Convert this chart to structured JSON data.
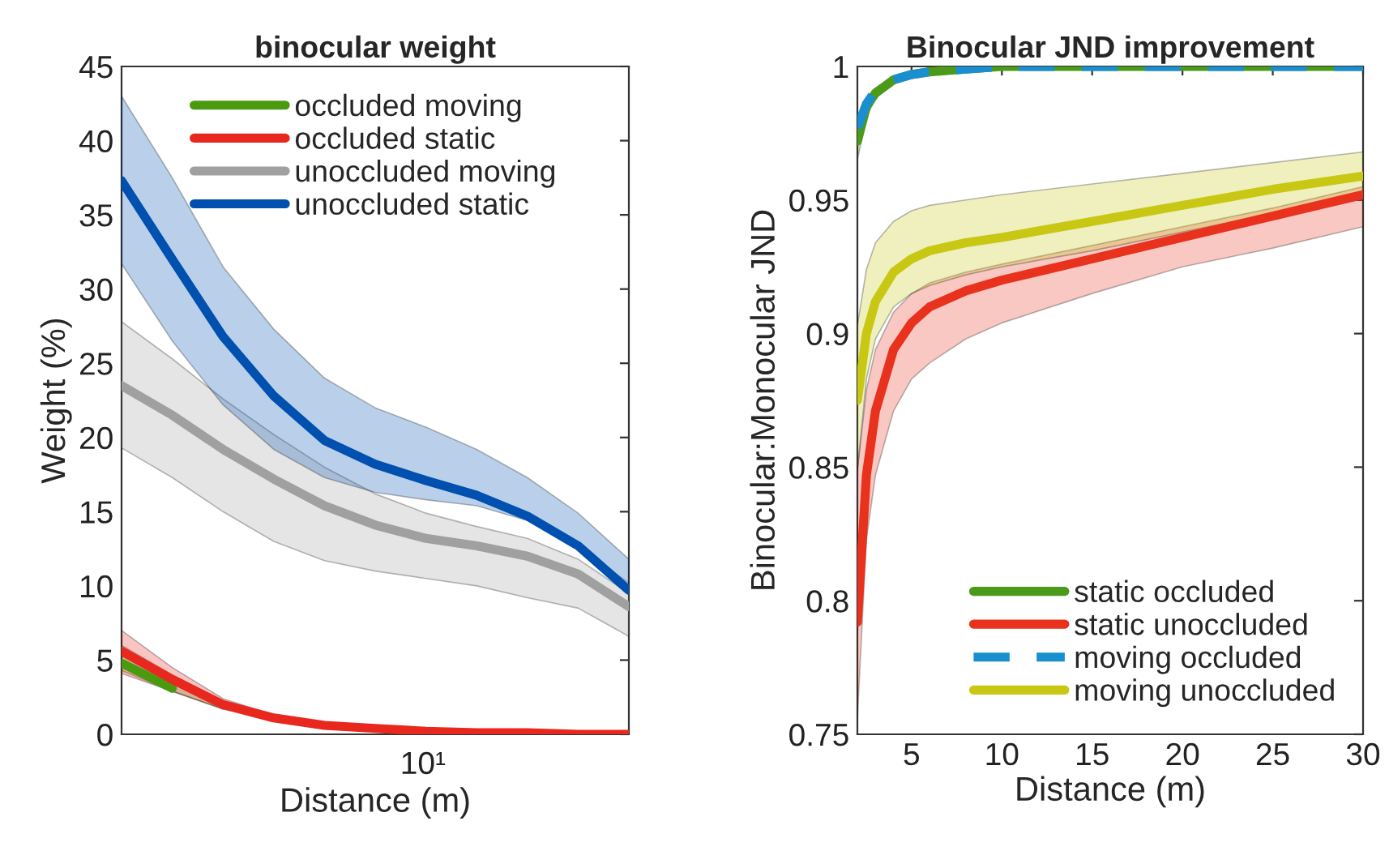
{
  "chart_data": [
    {
      "type": "line",
      "title": "binocular weight",
      "xlabel": "Distance (m)",
      "ylabel": "Weight (%)",
      "ylim": [
        0,
        45
      ],
      "categories": [
        null,
        null,
        null,
        null,
        null,
        null,
        null,
        null,
        null,
        null,
        null
      ],
      "annotations": [
        "10¹"
      ],
      "yticks": [
        0,
        5,
        10,
        15,
        20,
        25,
        30,
        35,
        40,
        45
      ],
      "legend": "top",
      "series": [
        {
          "name": "occluded moving",
          "color": "#4a9a10",
          "values": [
            4.8,
            3.1,
            null,
            null,
            null,
            null,
            null,
            null,
            null,
            null,
            null
          ],
          "lower": [
            4.3,
            2.9,
            1.7,
            null,
            null,
            null,
            null,
            null,
            null,
            null,
            null
          ],
          "upper": [
            6.0,
            4.0,
            2.2,
            null,
            null,
            null,
            null,
            null,
            null,
            null,
            null
          ]
        },
        {
          "name": "occluded static",
          "color": "#e8281e",
          "values": [
            5.6,
            3.7,
            2.0,
            1.1,
            0.6,
            0.4,
            0.2,
            0.1,
            0.1,
            0,
            0
          ],
          "lower": [
            4.1,
            2.9,
            1.7,
            1.0,
            0.6,
            0.4,
            0.2,
            0.1,
            0.1,
            0,
            0
          ],
          "upper": [
            7.0,
            4.5,
            2.4,
            1.3,
            0.7,
            0.4,
            0.2,
            0.1,
            0.1,
            0,
            0
          ]
        },
        {
          "name": "unoccluded moving",
          "color": "#a0a0a0",
          "values": [
            23.5,
            21.5,
            19.2,
            17.2,
            15.4,
            14.1,
            13.2,
            12.7,
            12.0,
            10.8,
            8.6
          ],
          "lower": [
            19.3,
            17.3,
            15.0,
            13.0,
            11.7,
            11.0,
            10.5,
            10.0,
            9.2,
            8.5,
            6.6
          ],
          "upper": [
            27.8,
            25.3,
            22.6,
            20.2,
            18.0,
            16.2,
            14.9,
            14.0,
            13.2,
            11.8,
            9.5
          ]
        },
        {
          "name": "unoccluded static",
          "color": "#0050b0",
          "values": [
            37.3,
            32.0,
            26.8,
            22.8,
            19.8,
            18.2,
            17.1,
            16.1,
            14.7,
            12.7,
            9.7
          ],
          "lower": [
            31.7,
            26.5,
            22.2,
            19.2,
            17.3,
            16.3,
            15.8,
            15.4,
            14.4,
            12.6,
            10.2
          ],
          "upper": [
            43.0,
            37.5,
            31.5,
            27.3,
            24.0,
            22.0,
            20.7,
            19.2,
            17.3,
            14.9,
            11.8
          ]
        }
      ]
    },
    {
      "type": "line",
      "title": "Binocular JND improvement",
      "xlabel": "Distance (m)",
      "ylabel": "Binocular:Monocular JND",
      "xlim": [
        2,
        30
      ],
      "ylim": [
        0.75,
        1
      ],
      "xticks": [
        5,
        10,
        15,
        20,
        25,
        30
      ],
      "yticks": [
        0.75,
        0.8,
        0.85,
        0.9,
        0.95,
        1
      ],
      "legend": "bottom right",
      "series": [
        {
          "name": "static occluded",
          "color": "#4c9a1a",
          "x": [
            2,
            2.5,
            3,
            4,
            5,
            6,
            8,
            10,
            15,
            20,
            25,
            30
          ],
          "values": [
            0.972,
            0.985,
            0.99,
            0.995,
            0.997,
            0.998,
            0.999,
            1.0,
            1.0,
            1.0,
            1.0,
            1.0
          ],
          "lower": [
            0.965,
            0.981,
            0.988,
            0.994,
            0.996,
            0.998,
            0.999,
            1.0,
            1.0,
            1.0,
            1.0,
            1.0
          ],
          "upper": [
            0.978,
            0.988,
            0.992,
            0.996,
            0.998,
            0.999,
            1.0,
            1.0,
            1.0,
            1.0,
            1.0,
            1.0
          ]
        },
        {
          "name": "static unoccluded",
          "color": "#e8321e",
          "x": [
            2,
            2.5,
            3,
            4,
            5,
            6,
            8,
            10,
            15,
            20,
            25,
            30
          ],
          "values": [
            0.792,
            0.847,
            0.871,
            0.894,
            0.904,
            0.91,
            0.916,
            0.92,
            0.928,
            0.936,
            0.944,
            0.952
          ],
          "lower": [
            0.756,
            0.823,
            0.847,
            0.871,
            0.883,
            0.889,
            0.898,
            0.904,
            0.915,
            0.925,
            0.932,
            0.94
          ],
          "upper": [
            0.849,
            0.879,
            0.894,
            0.908,
            0.915,
            0.919,
            0.923,
            0.926,
            0.933,
            0.94,
            0.947,
            0.955
          ]
        },
        {
          "name": "moving occluded",
          "color": "#1a8fd0",
          "line_style": "dashed",
          "x": [
            2,
            2.5,
            3,
            4,
            5,
            6,
            8,
            10,
            15,
            20,
            25,
            30
          ],
          "values": [
            0.977,
            0.986,
            0.991,
            0.995,
            0.997,
            0.998,
            0.999,
            1.0,
            1.0,
            1.0,
            1.0,
            1.0
          ]
        },
        {
          "name": "moving unoccluded",
          "color": "#c8c814",
          "x": [
            2,
            2.5,
            3,
            4,
            5,
            6,
            8,
            10,
            15,
            20,
            25,
            30
          ],
          "values": [
            0.875,
            0.9,
            0.912,
            0.923,
            0.928,
            0.931,
            0.934,
            0.936,
            0.942,
            0.948,
            0.954,
            0.959
          ],
          "lower": [
            0.849,
            0.883,
            0.898,
            0.91,
            0.915,
            0.918,
            0.922,
            0.925,
            0.931,
            0.938,
            0.945,
            0.951
          ],
          "upper": [
            0.903,
            0.924,
            0.934,
            0.942,
            0.946,
            0.948,
            0.95,
            0.952,
            0.956,
            0.96,
            0.964,
            0.968
          ]
        }
      ]
    }
  ]
}
